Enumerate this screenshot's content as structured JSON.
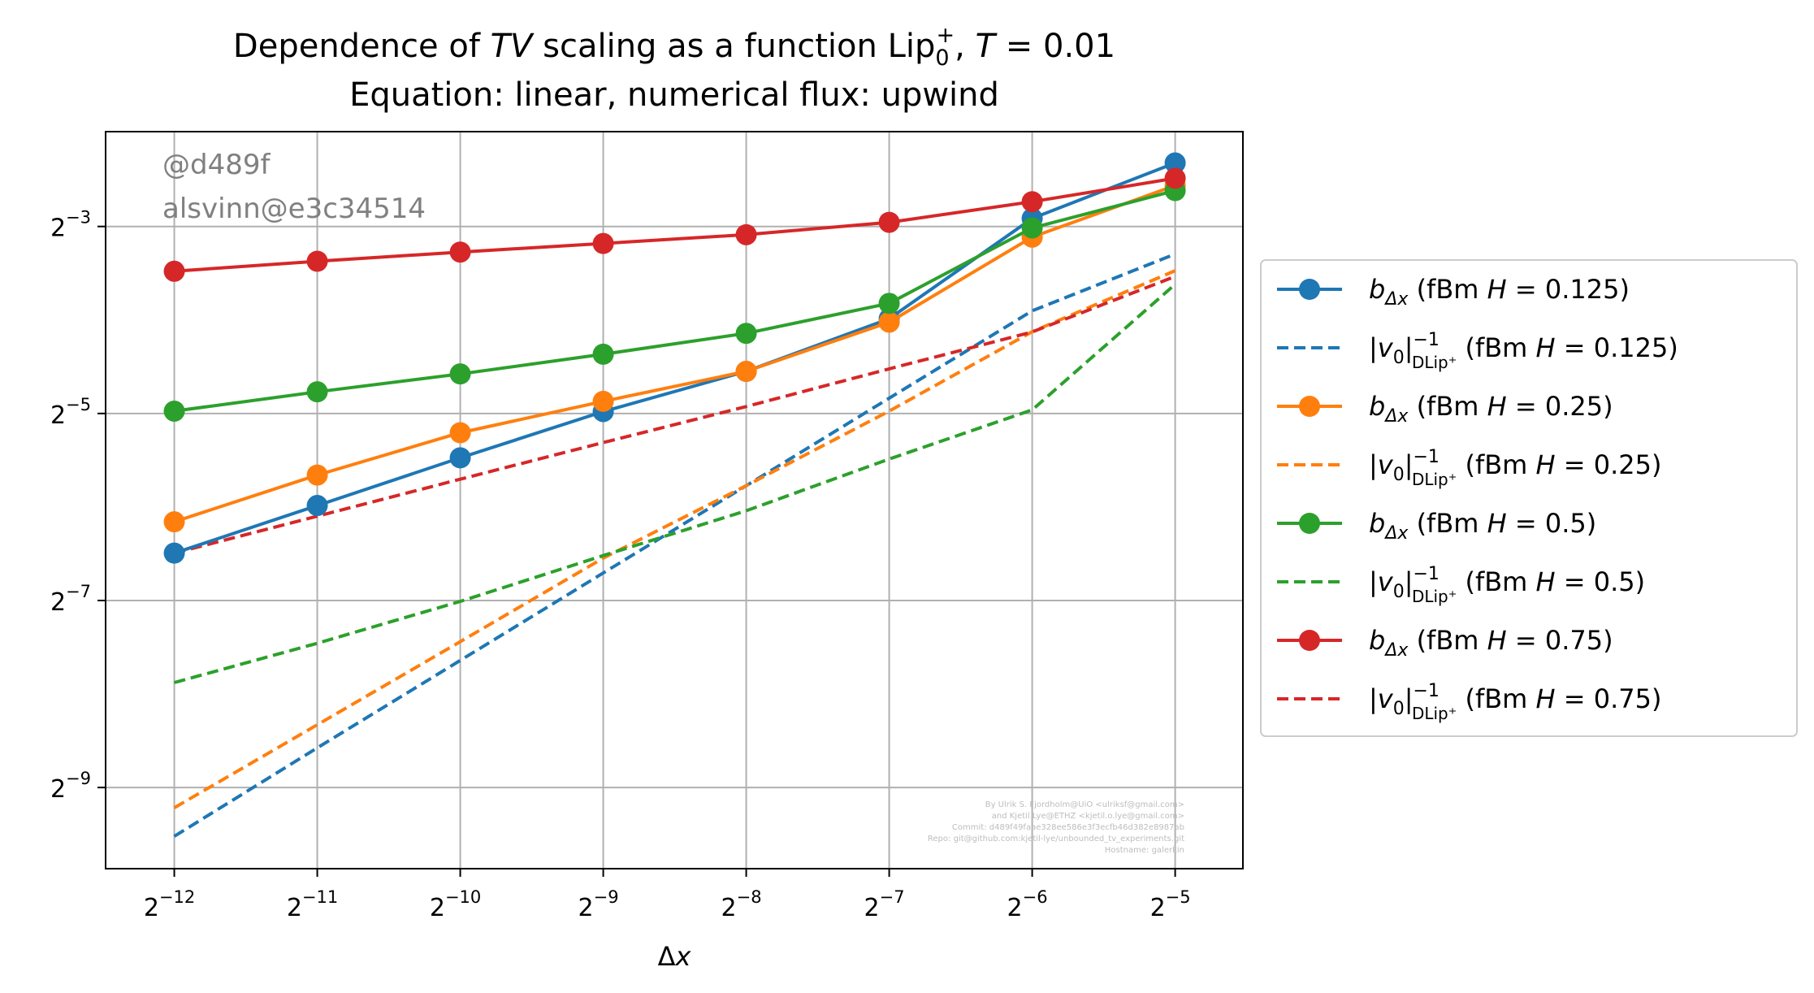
{
  "chart_data": {
    "type": "line",
    "title_prefix": "Dependence of ",
    "title_italic": "TV",
    "title_mid": " scaling as a function Lip",
    "title_sub": "0",
    "title_sup": "+",
    "title_suffix": ", ",
    "title_T": "T",
    "title_T_value": " = 0.01",
    "subtitle": "Equation: linear, numerical flux: upwind",
    "xlabel_delta": "Δ",
    "xlabel_var": "x",
    "x_scale": "log2",
    "y_scale": "log2",
    "grid": true,
    "legend_position": "outside-right",
    "x_ticks": [
      {
        "base": "2",
        "exp": "−12",
        "value": 0.000244140625
      },
      {
        "base": "2",
        "exp": "−11",
        "value": 0.00048828125
      },
      {
        "base": "2",
        "exp": "−10",
        "value": 0.0009765625
      },
      {
        "base": "2",
        "exp": "−9",
        "value": 0.001953125
      },
      {
        "base": "2",
        "exp": "−8",
        "value": 0.00390625
      },
      {
        "base": "2",
        "exp": "−7",
        "value": 0.0078125
      },
      {
        "base": "2",
        "exp": "−6",
        "value": 0.015625
      },
      {
        "base": "2",
        "exp": "−5",
        "value": 0.03125
      }
    ],
    "y_ticks": [
      {
        "base": "2",
        "exp": "−3",
        "value": 0.125
      },
      {
        "base": "2",
        "exp": "−5",
        "value": 0.03125
      },
      {
        "base": "2",
        "exp": "−7",
        "value": 0.0078125
      },
      {
        "base": "2",
        "exp": "−9",
        "value": 0.001953125
      }
    ],
    "xlim": [
      0.000175,
      0.0434
    ],
    "ylim": [
      0.00107,
      0.2525
    ],
    "x": [
      0.000244140625,
      0.00048828125,
      0.0009765625,
      0.001953125,
      0.00390625,
      0.0078125,
      0.015625,
      0.03125
    ],
    "series": [
      {
        "label_main": "b",
        "label_sub": "Δx",
        "label_param": " (fBm ",
        "label_H": "H",
        "label_value": " = 0.125)",
        "color": "#1f77b4",
        "style": "solid",
        "marker": true,
        "values": [
          0.0111,
          0.0158,
          0.0225,
          0.0317,
          0.0427,
          0.0631,
          0.1327,
          0.2002
        ]
      },
      {
        "label_main": "|v",
        "label_sub0": "0",
        "label_close": "|",
        "label_sup": "−1",
        "label_sub": "DLip⁺",
        "label_param": " (fBm ",
        "label_H": "H",
        "label_value": " = 0.125)",
        "color": "#1f77b4",
        "style": "dashed",
        "marker": false,
        "values": [
          0.00136,
          0.00262,
          0.00501,
          0.00958,
          0.0183,
          0.035,
          0.0669,
          0.1019
        ]
      },
      {
        "label_main": "b",
        "label_sub": "Δx",
        "label_param": " (fBm ",
        "label_H": "H",
        "label_value": " = 0.25)",
        "color": "#ff7f0e",
        "style": "solid",
        "marker": true,
        "values": [
          0.014,
          0.0198,
          0.0271,
          0.0342,
          0.0427,
          0.0615,
          0.1155,
          0.1694
        ]
      },
      {
        "label_main": "|v",
        "label_sub0": "0",
        "label_close": "|",
        "label_sup": "−1",
        "label_sub": "DLip⁺",
        "label_param": " (fBm ",
        "label_H": "H",
        "label_value": " = 0.25)",
        "color": "#ff7f0e",
        "style": "dashed",
        "marker": false,
        "values": [
          0.00168,
          0.00311,
          0.00576,
          0.0107,
          0.0183,
          0.0318,
          0.0573,
          0.0901
        ]
      },
      {
        "label_main": "b",
        "label_sub": "Δx",
        "label_param": " (fBm ",
        "label_H": "H",
        "label_value": " = 0.5)",
        "color": "#2ca02c",
        "style": "solid",
        "marker": true,
        "values": [
          0.0318,
          0.0367,
          0.0419,
          0.0485,
          0.0566,
          0.0707,
          0.1237,
          0.1631
        ]
      },
      {
        "label_main": "|v",
        "label_sub0": "0",
        "label_close": "|",
        "label_sup": "−1",
        "label_sub": "DLip⁺",
        "label_param": " (fBm ",
        "label_H": "H",
        "label_value": " = 0.5)",
        "color": "#2ca02c",
        "style": "dashed",
        "marker": false,
        "values": [
          0.00425,
          0.00569,
          0.00776,
          0.0109,
          0.0152,
          0.0223,
          0.0321,
          0.0814
        ]
      },
      {
        "label_main": "b",
        "label_sub": "Δx",
        "label_param": " (fBm ",
        "label_H": "H",
        "label_value": " = 0.75)",
        "color": "#d62728",
        "style": "solid",
        "marker": true,
        "values": [
          0.0897,
          0.0966,
          0.1034,
          0.1102,
          0.1176,
          0.1289,
          0.1502,
          0.1787
        ]
      },
      {
        "label_main": "|v",
        "label_sub0": "0",
        "label_close": "|",
        "label_sup": "−1",
        "label_sub": "DLip⁺",
        "label_param": " (fBm ",
        "label_H": "H",
        "label_value": " = 0.75)",
        "color": "#d62728",
        "style": "dashed",
        "marker": false,
        "values": [
          0.0111,
          0.0146,
          0.0192,
          0.0252,
          0.0329,
          0.0435,
          0.0572,
          0.0863
        ]
      }
    ],
    "watermark_lines": [
      "@d489f",
      "alsvinn@e3c34514"
    ],
    "credit_lines": [
      "By Ulrik S. Fjordholm@UiO <ulriksf@gmail.com>",
      "and Kjetil Lye@ETHZ <kjetil.o.lye@gmail.com>",
      "Commit: d489f49faae328ee586e3f3ecfb46d382e8987ab",
      "Repo: git@github.com:kjetil-lye/unbounded_tv_experiments.git",
      "Hostname: galerkin"
    ]
  }
}
